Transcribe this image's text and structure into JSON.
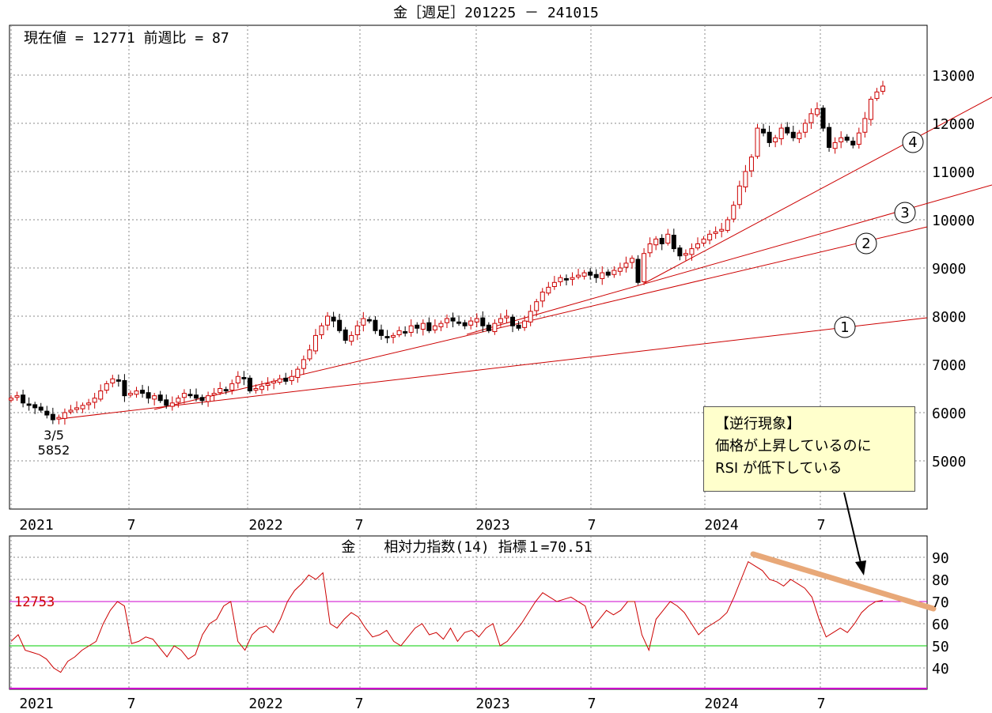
{
  "main_chart": {
    "title": "金［週足］201225 － 241015",
    "info": "現在値 = 12771  前週比 = 87",
    "y_ticks": [
      "13000",
      "12000",
      "11000",
      "10000",
      "9000",
      "8000",
      "7000",
      "6000",
      "5000"
    ],
    "x_ticks": [
      "2021",
      "7",
      "2022",
      "7",
      "2023",
      "7",
      "2024",
      "7"
    ],
    "low_annotation": {
      "date": "3/5",
      "value": "5852"
    },
    "trendline_labels": [
      "①",
      "②",
      "③",
      "④"
    ]
  },
  "note": {
    "lines": [
      "【逆行現象】",
      "価格が上昇しているのに",
      "RSI が低下している"
    ]
  },
  "rsi_chart": {
    "title": "金　　相対力指数(14) 指標１=70.51",
    "price_label": "12753",
    "y_ticks": [
      "90",
      "80",
      "70",
      "60",
      "50",
      "40"
    ],
    "x_ticks": [
      "2021",
      "7",
      "2022",
      "7",
      "2023",
      "7",
      "2024",
      "7"
    ],
    "overbought": 70,
    "midline": 50
  },
  "colors": {
    "candle_up": "#cc0000",
    "candle_down": "#000000",
    "trendline": "#cc0000",
    "rsi_line": "#cc0000",
    "overbought_line": "#cc00cc",
    "midline": "#00cc00",
    "divergence_line": "#e8a878"
  },
  "chart_data": [
    {
      "type": "candlestick",
      "title": "金［週足］201225 － 241015",
      "x_range": [
        "2020-12-25",
        "2024-10-15"
      ],
      "ylim": [
        4000,
        14000
      ],
      "grid": true,
      "series": [
        {
          "name": "weekly_close",
          "values": [
            6300,
            6350,
            6200,
            6150,
            6100,
            6050,
            5950,
            5852,
            5900,
            6000,
            6050,
            6100,
            6150,
            6200,
            6300,
            6450,
            6600,
            6700,
            6650,
            6350,
            6400,
            6450,
            6400,
            6300,
            6350,
            6250,
            6150,
            6200,
            6300,
            6400,
            6350,
            6300,
            6250,
            6350,
            6400,
            6500,
            6450,
            6600,
            6750,
            6700,
            6450,
            6500,
            6550,
            6600,
            6650,
            6700,
            6650,
            6750,
            6900,
            7100,
            7300,
            7600,
            7800,
            8000,
            7900,
            7700,
            7500,
            7600,
            7800,
            7950,
            7900,
            7700,
            7600,
            7550,
            7600,
            7700,
            7650,
            7800,
            7750,
            7850,
            7700,
            7800,
            7850,
            7950,
            7900,
            7850,
            7800,
            7900,
            7950,
            7800,
            7700,
            7850,
            7950,
            8000,
            7800,
            7750,
            7900,
            8100,
            8300,
            8500,
            8600,
            8700,
            8800,
            8750,
            8800,
            8850,
            8900,
            8850,
            8800,
            8900,
            8850,
            8950,
            9000,
            9100,
            9200,
            8700,
            9300,
            9500,
            9600,
            9500,
            9700,
            9400,
            9250,
            9300,
            9400,
            9500,
            9600,
            9700,
            9750,
            9800,
            10000,
            10300,
            10700,
            11000,
            11300,
            11900,
            11800,
            11600,
            11700,
            11900,
            11800,
            11700,
            11800,
            12000,
            12200,
            12300,
            11900,
            11500,
            11600,
            11700,
            11650,
            11550,
            11800,
            12100,
            12500,
            12650,
            12771
          ]
        }
      ],
      "annotations": [
        {
          "label": "3/5",
          "value": 5852
        }
      ],
      "trendlines": [
        "①",
        "②",
        "③",
        "④"
      ]
    },
    {
      "type": "line",
      "title": "金　　相対力指数(14) 指標１=70.51",
      "ylim": [
        30,
        95
      ],
      "grid": true,
      "reference_lines": [
        70,
        50
      ],
      "series": [
        {
          "name": "RSI(14)",
          "values": [
            52,
            55,
            48,
            47,
            46,
            44,
            40,
            38,
            43,
            45,
            48,
            50,
            52,
            60,
            66,
            70,
            68,
            51,
            52,
            54,
            53,
            49,
            45,
            50,
            48,
            44,
            46,
            55,
            60,
            62,
            68,
            70,
            52,
            48,
            55,
            58,
            59,
            56,
            62,
            70,
            75,
            78,
            82,
            80,
            83,
            60,
            58,
            62,
            65,
            63,
            58,
            54,
            55,
            57,
            52,
            50,
            54,
            58,
            60,
            55,
            56,
            53,
            58,
            52,
            56,
            57,
            54,
            58,
            60,
            50,
            52,
            56,
            60,
            65,
            70,
            74,
            72,
            70,
            71,
            72,
            70,
            68,
            58,
            62,
            66,
            64,
            66,
            70,
            70,
            55,
            48,
            62,
            66,
            70,
            68,
            65,
            60,
            55,
            58,
            60,
            62,
            65,
            72,
            80,
            88,
            86,
            84,
            80,
            79,
            77,
            80,
            78,
            76,
            72,
            62,
            54,
            56,
            58,
            56,
            60,
            65,
            68,
            70,
            70.51
          ]
        }
      ],
      "annotations": [
        {
          "label": "12753"
        }
      ]
    }
  ]
}
